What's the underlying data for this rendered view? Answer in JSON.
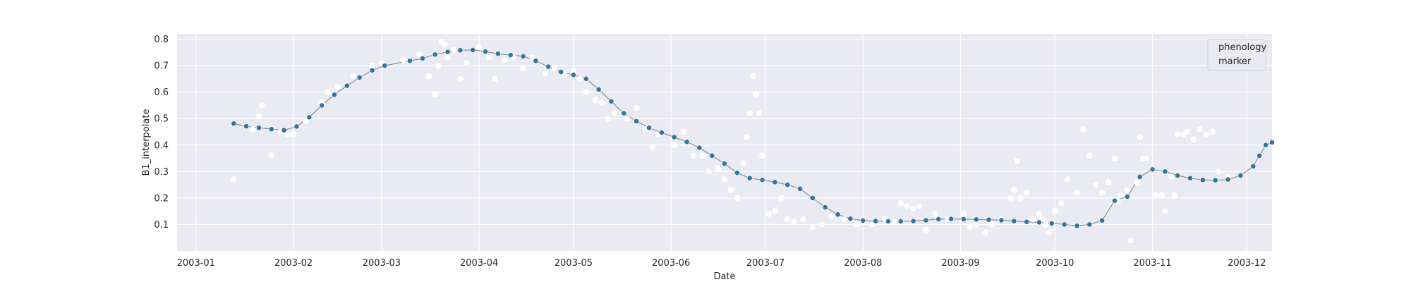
{
  "chart_data": {
    "type": "scatter",
    "title": "",
    "xlabel": "Date",
    "ylabel": "B1_interpolate",
    "x_axis": {
      "type": "date",
      "range": [
        "2002-12-26",
        "2003-12-09"
      ],
      "ticks": [
        "2003-01-01",
        "2003-02-01",
        "2003-03-01",
        "2003-04-01",
        "2003-05-01",
        "2003-06-01",
        "2003-07-01",
        "2003-08-01",
        "2003-09-01",
        "2003-10-01",
        "2003-11-01",
        "2003-12-01"
      ],
      "tick_labels": [
        "2003-01",
        "2003-02",
        "2003-03",
        "2003-04",
        "2003-05",
        "2003-06",
        "2003-07",
        "2003-08",
        "2003-09",
        "2003-10",
        "2003-11",
        "2003-12"
      ]
    },
    "y_axis": {
      "range": [
        0.0,
        0.82
      ],
      "ticks": [
        0.1,
        0.2,
        0.3,
        0.4,
        0.5,
        0.6,
        0.7,
        0.8
      ],
      "tick_labels": [
        "0.1",
        "0.2",
        "0.3",
        "0.4",
        "0.5",
        "0.6",
        "0.7",
        "0.8"
      ]
    },
    "grid": true,
    "style": "seaborn-darkgrid",
    "colors": {
      "plot_background": "#eaeaf2",
      "grid": "#ffffff",
      "interpolated_series": "#3274a1",
      "raw_points": "#ffffff",
      "connecting_line": "#7f7f7f"
    },
    "legend": {
      "entries": [
        "phenology",
        "marker"
      ],
      "placement": "top-right"
    },
    "series": [
      {
        "kind": "raw_observations",
        "marker": "white circle",
        "points": [
          [
            "2003-01-13",
            0.27
          ],
          [
            "2003-01-19",
            0.46
          ],
          [
            "2003-01-21",
            0.51
          ],
          [
            "2003-01-22",
            0.55
          ],
          [
            "2003-01-25",
            0.36
          ],
          [
            "2003-01-28",
            0.45
          ],
          [
            "2003-01-30",
            0.44
          ],
          [
            "2003-02-01",
            0.44
          ],
          [
            "2003-02-05",
            0.49
          ],
          [
            "2003-02-10",
            0.56
          ],
          [
            "2003-02-12",
            0.6
          ],
          [
            "2003-02-15",
            0.62
          ],
          [
            "2003-02-20",
            0.66
          ],
          [
            "2003-02-26",
            0.7
          ],
          [
            "2003-03-01",
            0.71
          ],
          [
            "2003-03-08",
            0.72
          ],
          [
            "2003-03-13",
            0.74
          ],
          [
            "2003-03-16",
            0.66
          ],
          [
            "2003-03-18",
            0.59
          ],
          [
            "2003-03-19",
            0.7
          ],
          [
            "2003-03-20",
            0.79
          ],
          [
            "2003-03-21",
            0.78
          ],
          [
            "2003-03-22",
            0.73
          ],
          [
            "2003-03-24",
            0.76
          ],
          [
            "2003-03-26",
            0.65
          ],
          [
            "2003-03-28",
            0.71
          ],
          [
            "2003-04-01",
            0.77
          ],
          [
            "2003-04-04",
            0.73
          ],
          [
            "2003-04-06",
            0.65
          ],
          [
            "2003-04-09",
            0.72
          ],
          [
            "2003-04-12",
            0.73
          ],
          [
            "2003-04-15",
            0.69
          ],
          [
            "2003-04-18",
            0.73
          ],
          [
            "2003-04-22",
            0.67
          ],
          [
            "2003-04-25",
            0.69
          ],
          [
            "2003-04-28",
            0.67
          ],
          [
            "2003-05-01",
            0.68
          ],
          [
            "2003-05-03",
            0.65
          ],
          [
            "2003-05-05",
            0.6
          ],
          [
            "2003-05-08",
            0.57
          ],
          [
            "2003-05-10",
            0.56
          ],
          [
            "2003-05-12",
            0.5
          ],
          [
            "2003-05-14",
            0.52
          ],
          [
            "2003-05-18",
            0.5
          ],
          [
            "2003-05-21",
            0.54
          ],
          [
            "2003-05-24",
            0.46
          ],
          [
            "2003-05-26",
            0.39
          ],
          [
            "2003-05-28",
            0.44
          ],
          [
            "2003-06-02",
            0.4
          ],
          [
            "2003-06-05",
            0.45
          ],
          [
            "2003-06-08",
            0.36
          ],
          [
            "2003-06-11",
            0.36
          ],
          [
            "2003-06-13",
            0.3
          ],
          [
            "2003-06-16",
            0.31
          ],
          [
            "2003-06-18",
            0.27
          ],
          [
            "2003-06-20",
            0.23
          ],
          [
            "2003-06-22",
            0.2
          ],
          [
            "2003-06-24",
            0.33
          ],
          [
            "2003-06-25",
            0.43
          ],
          [
            "2003-06-26",
            0.52
          ],
          [
            "2003-06-27",
            0.66
          ],
          [
            "2003-06-28",
            0.59
          ],
          [
            "2003-06-29",
            0.52
          ],
          [
            "2003-06-30",
            0.36
          ],
          [
            "2003-07-02",
            0.14
          ],
          [
            "2003-07-04",
            0.15
          ],
          [
            "2003-07-06",
            0.2
          ],
          [
            "2003-07-08",
            0.12
          ],
          [
            "2003-07-10",
            0.11
          ],
          [
            "2003-07-13",
            0.12
          ],
          [
            "2003-07-16",
            0.09
          ],
          [
            "2003-07-19",
            0.1
          ],
          [
            "2003-07-22",
            0.13
          ],
          [
            "2003-07-26",
            0.12
          ],
          [
            "2003-07-30",
            0.1
          ],
          [
            "2003-08-04",
            0.1
          ],
          [
            "2003-08-08",
            0.12
          ],
          [
            "2003-08-11",
            0.11
          ],
          [
            "2003-08-13",
            0.18
          ],
          [
            "2003-08-15",
            0.17
          ],
          [
            "2003-08-17",
            0.16
          ],
          [
            "2003-08-19",
            0.17
          ],
          [
            "2003-08-21",
            0.08
          ],
          [
            "2003-08-24",
            0.14
          ],
          [
            "2003-08-28",
            0.12
          ],
          [
            "2003-09-02",
            0.14
          ],
          [
            "2003-09-04",
            0.09
          ],
          [
            "2003-09-06",
            0.1
          ],
          [
            "2003-09-09",
            0.07
          ],
          [
            "2003-09-11",
            0.1
          ],
          [
            "2003-09-14",
            0.12
          ],
          [
            "2003-09-17",
            0.2
          ],
          [
            "2003-09-18",
            0.23
          ],
          [
            "2003-09-19",
            0.34
          ],
          [
            "2003-09-20",
            0.2
          ],
          [
            "2003-09-22",
            0.22
          ],
          [
            "2003-09-24",
            0.12
          ],
          [
            "2003-09-26",
            0.14
          ],
          [
            "2003-09-27",
            0.12
          ],
          [
            "2003-09-28",
            0.1
          ],
          [
            "2003-09-29",
            0.07
          ],
          [
            "2003-10-01",
            0.15
          ],
          [
            "2003-10-03",
            0.18
          ],
          [
            "2003-10-05",
            0.27
          ],
          [
            "2003-10-08",
            0.22
          ],
          [
            "2003-10-10",
            0.46
          ],
          [
            "2003-10-12",
            0.36
          ],
          [
            "2003-10-14",
            0.25
          ],
          [
            "2003-10-16",
            0.22
          ],
          [
            "2003-10-18",
            0.26
          ],
          [
            "2003-10-20",
            0.35
          ],
          [
            "2003-10-21",
            0.19
          ],
          [
            "2003-10-22",
            0.21
          ],
          [
            "2003-10-24",
            0.23
          ],
          [
            "2003-10-25",
            0.04
          ],
          [
            "2003-10-27",
            0.26
          ],
          [
            "2003-10-28",
            0.43
          ],
          [
            "2003-10-29",
            0.35
          ],
          [
            "2003-10-30",
            0.35
          ],
          [
            "2003-11-02",
            0.21
          ],
          [
            "2003-11-04",
            0.21
          ],
          [
            "2003-11-05",
            0.15
          ],
          [
            "2003-11-07",
            0.28
          ],
          [
            "2003-11-08",
            0.21
          ],
          [
            "2003-11-09",
            0.44
          ],
          [
            "2003-11-11",
            0.44
          ],
          [
            "2003-11-12",
            0.45
          ],
          [
            "2003-11-14",
            0.42
          ],
          [
            "2003-11-16",
            0.46
          ],
          [
            "2003-11-18",
            0.44
          ],
          [
            "2003-11-20",
            0.45
          ],
          [
            "2003-11-22",
            0.3
          ],
          [
            "2003-11-25",
            0.28
          ]
        ]
      },
      {
        "kind": "interpolated",
        "marker": "blue circle",
        "line": "thin grey connecting line",
        "points": [
          [
            "2003-01-13",
            0.481
          ],
          [
            "2003-01-17",
            0.471
          ],
          [
            "2003-01-21",
            0.465
          ],
          [
            "2003-01-25",
            0.46
          ],
          [
            "2003-01-29",
            0.456
          ],
          [
            "2003-02-02",
            0.47
          ],
          [
            "2003-02-06",
            0.505
          ],
          [
            "2003-02-10",
            0.55
          ],
          [
            "2003-02-14",
            0.59
          ],
          [
            "2003-02-18",
            0.624
          ],
          [
            "2003-02-22",
            0.655
          ],
          [
            "2003-02-26",
            0.682
          ],
          [
            "2003-03-02",
            0.7
          ],
          [
            "2003-03-10",
            0.718
          ],
          [
            "2003-03-14",
            0.727
          ],
          [
            "2003-03-18",
            0.742
          ],
          [
            "2003-03-22",
            0.752
          ],
          [
            "2003-03-26",
            0.758
          ],
          [
            "2003-03-30",
            0.759
          ],
          [
            "2003-04-03",
            0.753
          ],
          [
            "2003-04-07",
            0.745
          ],
          [
            "2003-04-11",
            0.74
          ],
          [
            "2003-04-15",
            0.735
          ],
          [
            "2003-04-19",
            0.718
          ],
          [
            "2003-04-23",
            0.696
          ],
          [
            "2003-04-27",
            0.676
          ],
          [
            "2003-05-01",
            0.665
          ],
          [
            "2003-05-05",
            0.65
          ],
          [
            "2003-05-09",
            0.61
          ],
          [
            "2003-05-13",
            0.565
          ],
          [
            "2003-05-17",
            0.52
          ],
          [
            "2003-05-21",
            0.49
          ],
          [
            "2003-05-25",
            0.465
          ],
          [
            "2003-05-29",
            0.447
          ],
          [
            "2003-06-02",
            0.43
          ],
          [
            "2003-06-06",
            0.412
          ],
          [
            "2003-06-10",
            0.39
          ],
          [
            "2003-06-14",
            0.36
          ],
          [
            "2003-06-18",
            0.33
          ],
          [
            "2003-06-22",
            0.295
          ],
          [
            "2003-06-26",
            0.275
          ],
          [
            "2003-06-30",
            0.268
          ],
          [
            "2003-07-04",
            0.26
          ],
          [
            "2003-07-08",
            0.25
          ],
          [
            "2003-07-12",
            0.235
          ],
          [
            "2003-07-16",
            0.2
          ],
          [
            "2003-07-20",
            0.165
          ],
          [
            "2003-07-24",
            0.138
          ],
          [
            "2003-07-28",
            0.122
          ],
          [
            "2003-08-01",
            0.115
          ],
          [
            "2003-08-05",
            0.113
          ],
          [
            "2003-08-09",
            0.112
          ],
          [
            "2003-08-13",
            0.112
          ],
          [
            "2003-08-17",
            0.113
          ],
          [
            "2003-08-21",
            0.116
          ],
          [
            "2003-08-25",
            0.12
          ],
          [
            "2003-08-29",
            0.121
          ],
          [
            "2003-09-02",
            0.12
          ],
          [
            "2003-09-06",
            0.119
          ],
          [
            "2003-09-10",
            0.118
          ],
          [
            "2003-09-14",
            0.116
          ],
          [
            "2003-09-18",
            0.113
          ],
          [
            "2003-09-22",
            0.11
          ],
          [
            "2003-09-26",
            0.108
          ],
          [
            "2003-09-30",
            0.104
          ],
          [
            "2003-10-04",
            0.1
          ],
          [
            "2003-10-08",
            0.095
          ],
          [
            "2003-10-12",
            0.1
          ],
          [
            "2003-10-16",
            0.115
          ],
          [
            "2003-10-20",
            0.19
          ],
          [
            "2003-10-24",
            0.205
          ],
          [
            "2003-10-28",
            0.28
          ],
          [
            "2003-11-01",
            0.308
          ],
          [
            "2003-11-05",
            0.3
          ],
          [
            "2003-11-09",
            0.285
          ],
          [
            "2003-11-13",
            0.275
          ],
          [
            "2003-11-17",
            0.268
          ],
          [
            "2003-11-21",
            0.267
          ],
          [
            "2003-11-25",
            0.27
          ],
          [
            "2003-11-29",
            0.285
          ],
          [
            "2003-12-03",
            0.32
          ],
          [
            "2003-12-05",
            0.36
          ],
          [
            "2003-12-07",
            0.4
          ],
          [
            "2003-12-09",
            0.41
          ]
        ]
      }
    ]
  }
}
